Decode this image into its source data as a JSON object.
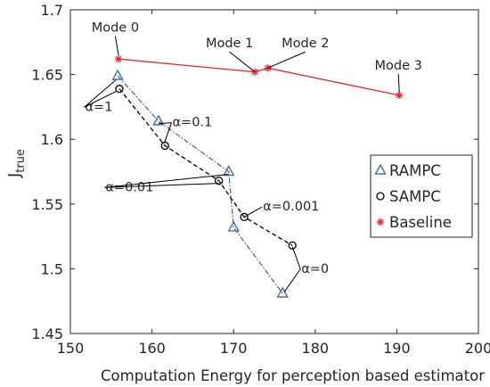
{
  "chart_data": {
    "type": "line",
    "xlabel": "Computation Energy for perception based estimator (J)",
    "ylabel": "J",
    "ylabel_sub": "true",
    "xlim": [
      150,
      200
    ],
    "ylim": [
      1.45,
      1.7
    ],
    "xticks": [
      150,
      160,
      170,
      180,
      190,
      200
    ],
    "yticks": [
      1.45,
      1.5,
      1.55,
      1.6,
      1.65,
      1.7
    ],
    "ytick_labels": [
      "1.45",
      "1.5",
      "1.55",
      "1.6",
      "1.65",
      "1.7"
    ],
    "grid": false,
    "legend_position": "right",
    "series": [
      {
        "name": "RAMPC",
        "color": "#4a6aab",
        "marker": "triangle",
        "line_style": "dashdot",
        "x": [
          155.8,
          160.8,
          169.4,
          170.0,
          176.0
        ],
        "y": [
          1.649,
          1.614,
          1.575,
          1.532,
          1.481
        ]
      },
      {
        "name": "SAMPC",
        "color": "#000000",
        "marker": "circle",
        "line_style": "dashed",
        "x": [
          156.0,
          161.6,
          168.2,
          171.3,
          177.2
        ],
        "y": [
          1.639,
          1.595,
          1.568,
          1.54,
          1.518
        ]
      },
      {
        "name": "Baseline",
        "color": "#e8262d",
        "marker": "star",
        "line_style": "solid",
        "x": [
          155.9,
          172.6,
          174.2,
          190.3
        ],
        "y": [
          1.662,
          1.652,
          1.655,
          1.634
        ]
      }
    ],
    "annotations": [
      {
        "text": "Mode 0",
        "x": 155.5,
        "y": 1.683,
        "anchor": "middle",
        "leaders": [
          [
            155.9,
            1.665
          ]
        ]
      },
      {
        "text": "Mode 1",
        "x": 169.5,
        "y": 1.671,
        "anchor": "middle",
        "leaders": [
          [
            172.6,
            1.652
          ]
        ]
      },
      {
        "text": "Mode 2",
        "x": 178.8,
        "y": 1.671,
        "anchor": "middle",
        "leaders": [
          [
            174.2,
            1.655
          ]
        ]
      },
      {
        "text": "Mode 3",
        "x": 190.2,
        "y": 1.654,
        "anchor": "middle",
        "leaders": [
          [
            190.3,
            1.636
          ]
        ]
      },
      {
        "text": "α=1",
        "x": 151.8,
        "y": 1.622,
        "anchor": "start",
        "leaders": [
          [
            155.6,
            1.646
          ],
          [
            155.6,
            1.637
          ]
        ]
      },
      {
        "text": "α=0.1",
        "x": 162.5,
        "y": 1.61,
        "anchor": "start",
        "leaders": [
          [
            160.8,
            1.612
          ],
          [
            161.5,
            1.597
          ]
        ]
      },
      {
        "text": "α=0.01",
        "x": 154.3,
        "y": 1.56,
        "anchor": "start",
        "leaders": [
          [
            169.4,
            1.573
          ],
          [
            168.2,
            1.566
          ]
        ]
      },
      {
        "text": "α=0.001",
        "x": 173.6,
        "y": 1.545,
        "anchor": "start",
        "leaders": [
          [
            171.3,
            1.54
          ]
        ]
      },
      {
        "text": "α=0",
        "x": 178.3,
        "y": 1.497,
        "anchor": "start",
        "leaders": [
          [
            177.2,
            1.517
          ],
          [
            176.2,
            1.482
          ]
        ]
      }
    ]
  }
}
